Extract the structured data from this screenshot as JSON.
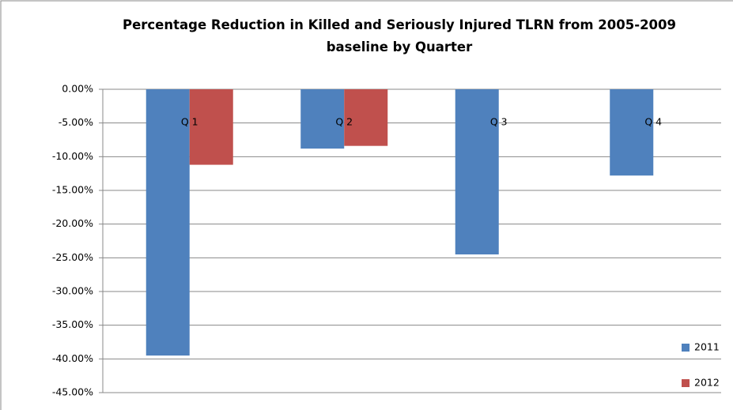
{
  "chart_data": {
    "type": "bar",
    "title": "Percentage Reduction in Killed and Seriously Injured TLRN from 2005-2009 baseline by Quarter",
    "categories": [
      "Q 1",
      "Q 2",
      "Q 3",
      "Q 4"
    ],
    "series": [
      {
        "name": "2011",
        "color": "#4f81bd",
        "values": [
          -39.5,
          -8.8,
          -24.5,
          -12.8
        ]
      },
      {
        "name": "2012",
        "color": "#c0504d",
        "values": [
          -11.2,
          -8.4,
          null,
          null
        ]
      }
    ],
    "ylim": [
      -45,
      0
    ],
    "yticks": [
      {
        "value": 0,
        "label": "0.00%"
      },
      {
        "value": -5,
        "label": "-5.00%"
      },
      {
        "value": -10,
        "label": "-10.00%"
      },
      {
        "value": -15,
        "label": "-15.00%"
      },
      {
        "value": -20,
        "label": "-20.00%"
      },
      {
        "value": -25,
        "label": "-25.00%"
      },
      {
        "value": -30,
        "label": "-30.00%"
      },
      {
        "value": -35,
        "label": "-35.00%"
      },
      {
        "value": -40,
        "label": "-40.00%"
      },
      {
        "value": -45,
        "label": "-45.00%"
      }
    ],
    "grid": true,
    "legend": "lower right"
  }
}
